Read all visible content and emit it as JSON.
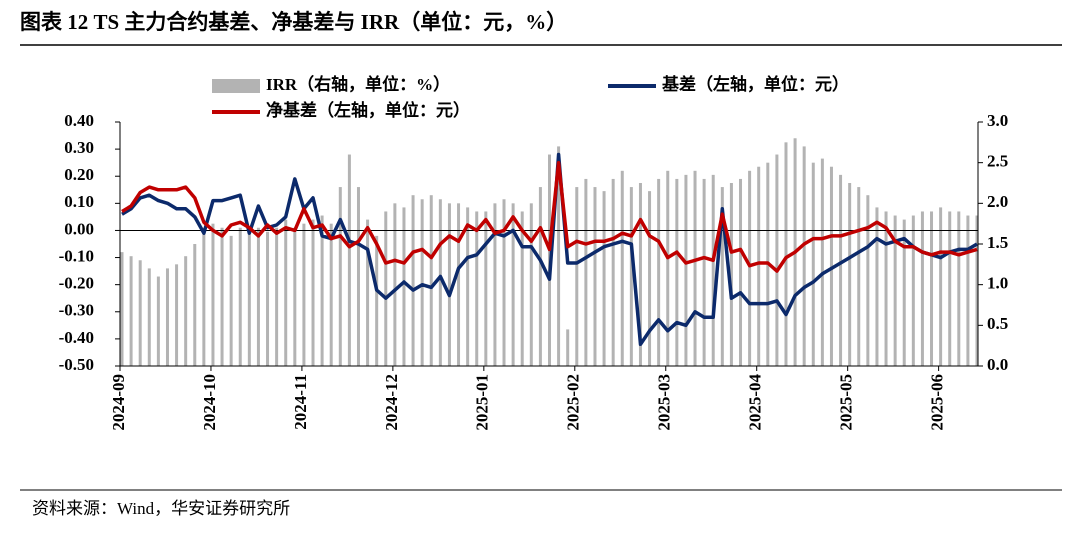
{
  "chart_data": {
    "type": "combo",
    "title": "图表 12 TS 主力合约基差、净基差与 IRR（单位：元，%）",
    "source": "资料来源：Wind，华安证券研究所",
    "legend": "top",
    "categories": [
      "2024-09",
      null,
      null,
      null,
      null,
      null,
      null,
      null,
      null,
      null,
      "2024-10",
      null,
      null,
      null,
      null,
      null,
      null,
      null,
      null,
      null,
      "2024-11",
      null,
      null,
      null,
      null,
      null,
      null,
      null,
      null,
      null,
      "2024-12",
      null,
      null,
      null,
      null,
      null,
      null,
      null,
      null,
      null,
      "2025-01",
      null,
      null,
      null,
      null,
      null,
      null,
      null,
      null,
      null,
      "2025-02",
      null,
      null,
      null,
      null,
      null,
      null,
      null,
      null,
      null,
      "2025-03",
      null,
      null,
      null,
      null,
      null,
      null,
      null,
      null,
      null,
      "2025-04",
      null,
      null,
      null,
      null,
      null,
      null,
      null,
      null,
      null,
      "2025-05",
      null,
      null,
      null,
      null,
      null,
      null,
      null,
      null,
      null,
      "2025-06",
      null,
      null,
      null,
      null
    ],
    "ylim": [
      -0.5,
      0.4
    ],
    "yticks": [
      {
        "value": 0.4,
        "label": "0.40"
      },
      {
        "value": 0.3,
        "label": "0.30"
      },
      {
        "value": 0.2,
        "label": "0.20"
      },
      {
        "value": 0.1,
        "label": "0.10"
      },
      {
        "value": 0,
        "label": "0.00"
      },
      {
        "value": -0.1,
        "label": "-0.10"
      },
      {
        "value": -0.2,
        "label": "-0.20"
      },
      {
        "value": -0.3,
        "label": "-0.30"
      },
      {
        "value": -0.4,
        "label": "-0.40"
      },
      {
        "value": -0.5,
        "label": "-0.50"
      }
    ],
    "y2lim": [
      0,
      3
    ],
    "y2ticks": [
      {
        "value": 3,
        "label": "3.0"
      },
      {
        "value": 2.5,
        "label": "2.5"
      },
      {
        "value": 2,
        "label": "2.0"
      },
      {
        "value": 1.5,
        "label": "1.5"
      },
      {
        "value": 1,
        "label": "1.0"
      },
      {
        "value": 0.5,
        "label": "0.5"
      },
      {
        "value": 0,
        "label": "0.0"
      }
    ],
    "series": [
      {
        "name": "IRR（右轴，单位：%）",
        "type": "bar",
        "axis": "y2",
        "color": "#b3b3b3",
        "values": [
          1.4,
          1.35,
          1.3,
          1.2,
          1.1,
          1.2,
          1.25,
          1.35,
          1.5,
          1.7,
          1.75,
          1.7,
          1.6,
          1.7,
          1.65,
          1.7,
          1.65,
          1.7,
          1.8,
          1.7,
          1.75,
          1.8,
          1.85,
          1.75,
          2.2,
          2.6,
          2.2,
          1.8,
          1.6,
          1.9,
          2.0,
          1.95,
          2.1,
          2.05,
          2.1,
          2.05,
          2.0,
          2.0,
          1.95,
          1.9,
          1.9,
          2.0,
          2.05,
          2.0,
          1.9,
          2.0,
          2.2,
          2.6,
          2.7,
          0.45,
          2.2,
          2.3,
          2.2,
          2.15,
          2.3,
          2.4,
          2.2,
          2.25,
          2.15,
          2.3,
          2.4,
          2.3,
          2.35,
          2.4,
          2.3,
          2.35,
          2.2,
          2.25,
          2.3,
          2.4,
          2.45,
          2.5,
          2.6,
          2.75,
          2.8,
          2.7,
          2.5,
          2.55,
          2.45,
          2.35,
          2.25,
          2.2,
          2.1,
          1.95,
          1.9,
          1.85,
          1.8,
          1.85,
          1.9,
          1.9,
          1.95,
          1.9,
          1.9,
          1.85,
          1.85
        ]
      },
      {
        "name": "基差（左轴，单位：元）",
        "type": "line",
        "color": "#0c2a6b",
        "values": [
          0.06,
          0.08,
          0.12,
          0.13,
          0.11,
          0.1,
          0.08,
          0.08,
          0.05,
          -0.01,
          0.11,
          0.11,
          0.12,
          0.13,
          -0.01,
          0.09,
          0.01,
          0.02,
          0.05,
          0.19,
          0.08,
          0.12,
          -0.02,
          -0.03,
          0.04,
          -0.04,
          -0.05,
          -0.07,
          -0.22,
          -0.25,
          -0.22,
          -0.19,
          -0.22,
          -0.2,
          -0.21,
          -0.17,
          -0.24,
          -0.14,
          -0.1,
          -0.09,
          -0.05,
          -0.01,
          -0.02,
          0.0,
          -0.06,
          -0.06,
          -0.11,
          -0.18,
          0.28,
          -0.12,
          -0.12,
          -0.1,
          -0.08,
          -0.06,
          -0.05,
          -0.04,
          -0.05,
          -0.42,
          -0.37,
          -0.33,
          -0.37,
          -0.34,
          -0.35,
          -0.3,
          -0.32,
          -0.32,
          0.08,
          -0.25,
          -0.23,
          -0.27,
          -0.27,
          -0.27,
          -0.26,
          -0.31,
          -0.24,
          -0.21,
          -0.19,
          -0.16,
          -0.14,
          -0.12,
          -0.1,
          -0.08,
          -0.06,
          -0.03,
          -0.05,
          -0.04,
          -0.03,
          -0.06,
          -0.08,
          -0.09,
          -0.1,
          -0.08,
          -0.07,
          -0.07,
          -0.05
        ]
      },
      {
        "name": "净基差（左轴，单位：元）",
        "type": "line",
        "color": "#c00000",
        "values": [
          0.07,
          0.09,
          0.14,
          0.16,
          0.15,
          0.15,
          0.15,
          0.16,
          0.12,
          0.03,
          0.0,
          -0.02,
          0.02,
          0.03,
          0.01,
          -0.02,
          0.02,
          -0.01,
          0.01,
          0.0,
          0.08,
          0.01,
          0.02,
          -0.03,
          -0.02,
          -0.06,
          -0.04,
          0.01,
          -0.05,
          -0.12,
          -0.11,
          -0.12,
          -0.08,
          -0.07,
          -0.1,
          -0.05,
          -0.02,
          -0.04,
          0.02,
          0.0,
          0.04,
          -0.01,
          0.0,
          0.05,
          0.0,
          -0.04,
          0.01,
          -0.07,
          0.25,
          -0.06,
          -0.04,
          -0.05,
          -0.04,
          -0.04,
          -0.03,
          -0.01,
          -0.02,
          0.04,
          -0.02,
          -0.04,
          -0.1,
          -0.08,
          -0.12,
          -0.11,
          -0.1,
          -0.11,
          0.06,
          -0.08,
          -0.07,
          -0.13,
          -0.12,
          -0.12,
          -0.15,
          -0.1,
          -0.08,
          -0.05,
          -0.03,
          -0.03,
          -0.02,
          -0.02,
          -0.01,
          0.0,
          0.01,
          0.03,
          0.01,
          -0.04,
          -0.06,
          -0.06,
          -0.08,
          -0.09,
          -0.08,
          -0.08,
          -0.09,
          -0.08,
          -0.07
        ]
      }
    ]
  }
}
